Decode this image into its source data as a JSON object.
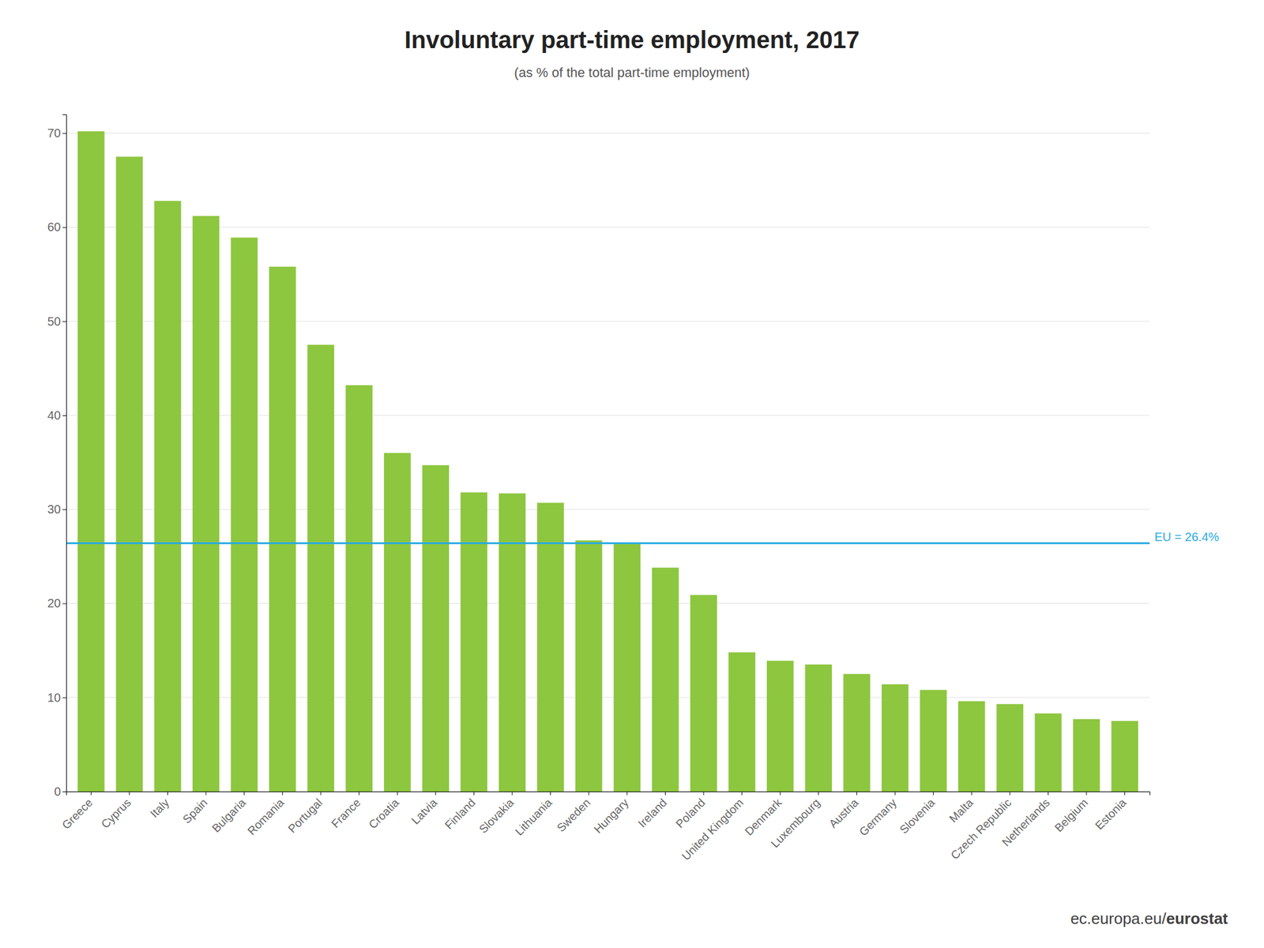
{
  "chart_data": {
    "type": "bar",
    "title": "Involuntary part-time employment, 2017",
    "subtitle": "(as % of the total part-time employment)",
    "categories": [
      "Greece",
      "Cyprus",
      "Italy",
      "Spain",
      "Bulgaria",
      "Romania",
      "Portugal",
      "France",
      "Croatia",
      "Latvia",
      "Finland",
      "Slovakia",
      "Lithuania",
      "Sweden",
      "Hungary",
      "Ireland",
      "Poland",
      "United Kingdom",
      "Denmark",
      "Luxembourg",
      "Austria",
      "Germany",
      "Slovenia",
      "Malta",
      "Czech Republic",
      "Netherlands",
      "Belgium",
      "Estonia"
    ],
    "values": [
      70.2,
      67.5,
      62.8,
      61.2,
      58.9,
      55.8,
      47.5,
      43.2,
      36.0,
      34.7,
      31.8,
      31.7,
      30.7,
      26.7,
      26.4,
      23.8,
      20.9,
      14.8,
      13.9,
      13.5,
      12.5,
      11.4,
      10.8,
      9.6,
      9.3,
      8.3,
      7.7,
      7.5
    ],
    "color": "#8DC63F",
    "ylim": [
      0,
      72
    ],
    "yticks": [
      0,
      10,
      20,
      30,
      40,
      50,
      60,
      70
    ],
    "grid": true,
    "annotations": [
      {
        "text": "EU = 26.4%",
        "y": 26.4,
        "color": "#29ABE2"
      },
      {
        "text": "ec.europa.eu/"
      },
      {
        "text": "eurostat"
      }
    ]
  }
}
